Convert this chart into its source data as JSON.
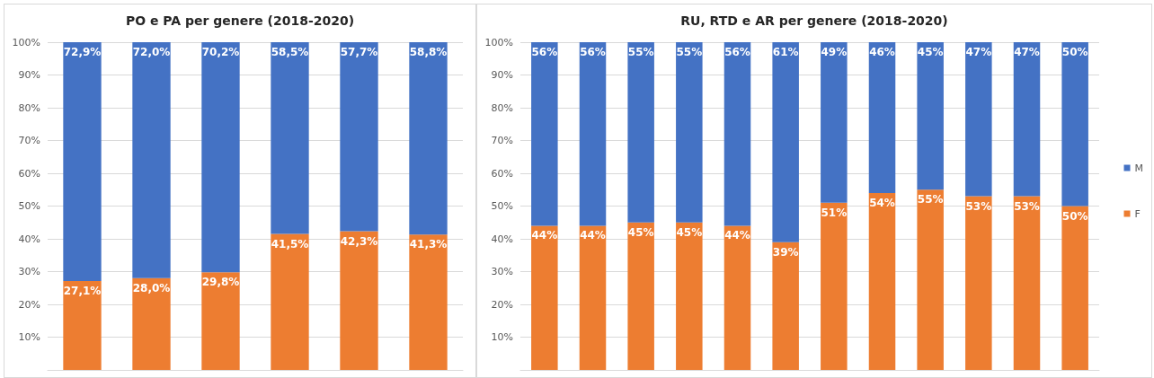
{
  "chart_data": [
    {
      "type": "bar",
      "title": "PO e PA per genere (2018-2020)",
      "categories": [
        null,
        null,
        null,
        null,
        null,
        null
      ],
      "stacked": true,
      "grid": "y",
      "legend": false,
      "tick_labels": "y",
      "ylim": [
        0,
        100
      ],
      "yticks": [
        {
          "value": 10,
          "label": "10%"
        },
        {
          "value": 20,
          "label": "20%"
        },
        {
          "value": 30,
          "label": "30%"
        },
        {
          "value": 40,
          "label": "40%"
        },
        {
          "value": 50,
          "label": "50%"
        },
        {
          "value": 60,
          "label": "60%"
        },
        {
          "value": 70,
          "label": "70%"
        },
        {
          "value": 80,
          "label": "80%"
        },
        {
          "value": 90,
          "label": "90%"
        },
        {
          "value": 100,
          "label": "100%"
        }
      ],
      "series": [
        {
          "color": "#ed7d31",
          "values": [
            27.1,
            28.0,
            29.8,
            41.5,
            42.3,
            41.3
          ],
          "value_labels": [
            "27,1%",
            "28,0%",
            "29,8%",
            "41,5%",
            "42,3%",
            "41,3%"
          ]
        },
        {
          "color": "#4472c4",
          "values": [
            72.9,
            72.0,
            70.2,
            58.5,
            57.7,
            58.8
          ],
          "value_labels": [
            "72,9%",
            "72,0%",
            "70,2%",
            "58,5%",
            "57,7%",
            "58,8%"
          ]
        }
      ]
    },
    {
      "type": "bar",
      "title": "RU, RTD e AR per genere (2018-2020)",
      "categories": [
        null,
        null,
        null,
        null,
        null,
        null,
        null,
        null,
        null,
        null,
        null,
        null
      ],
      "stacked": true,
      "grid": "y",
      "legend": "right",
      "tick_labels": "y",
      "ylim": [
        0,
        100
      ],
      "yticks": [
        {
          "value": 10,
          "label": "10%"
        },
        {
          "value": 20,
          "label": "20%"
        },
        {
          "value": 30,
          "label": "30%"
        },
        {
          "value": 40,
          "label": "40%"
        },
        {
          "value": 50,
          "label": "50%"
        },
        {
          "value": 60,
          "label": "60%"
        },
        {
          "value": 70,
          "label": "70%"
        },
        {
          "value": 80,
          "label": "80%"
        },
        {
          "value": 90,
          "label": "90%"
        },
        {
          "value": 100,
          "label": "100%"
        }
      ],
      "series": [
        {
          "name": "F",
          "color": "#ed7d31",
          "values": [
            44,
            44,
            45,
            45,
            44,
            39,
            51,
            54,
            55,
            53,
            53,
            50
          ],
          "value_labels": [
            "44%",
            "44%",
            "45%",
            "45%",
            "44%",
            "39%",
            "51%",
            "54%",
            "55%",
            "53%",
            "53%",
            "50%"
          ]
        },
        {
          "name": "M",
          "color": "#4472c4",
          "values": [
            56,
            56,
            55,
            55,
            56,
            61,
            49,
            46,
            45,
            47,
            47,
            50
          ],
          "value_labels": [
            "56%",
            "56%",
            "55%",
            "55%",
            "56%",
            "61%",
            "49%",
            "46%",
            "45%",
            "47%",
            "47%",
            "50%"
          ]
        }
      ]
    }
  ]
}
